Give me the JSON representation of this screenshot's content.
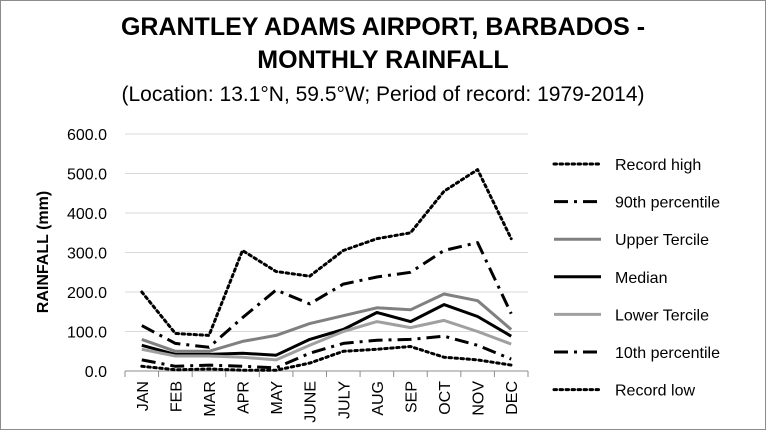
{
  "chart_data": {
    "type": "line",
    "title_line1": "GRANTLEY ADAMS AIRPORT, BARBADOS -",
    "title_line2": "MONTHLY RAINFALL",
    "subtitle": "(Location: 13.1°N, 59.5°W; Period of record: 1979-2014)",
    "ylabel": "RAINFALL (mm)",
    "xlabel": "",
    "ylim": [
      0,
      600
    ],
    "yticks": [
      "0.0",
      "100.0",
      "200.0",
      "300.0",
      "400.0",
      "500.0",
      "600.0"
    ],
    "grid": true,
    "legend_position": "right",
    "categories": [
      "JAN",
      "FEB",
      "MAR",
      "APR",
      "MAY",
      "JUNE",
      "JULY",
      "AUG",
      "SEP",
      "OCT",
      "NOV",
      "DEC"
    ],
    "series": [
      {
        "name": "Record high",
        "style": "dotted",
        "color": "#000000",
        "values": [
          200,
          95,
          90,
          305,
          252,
          240,
          305,
          335,
          350,
          455,
          510,
          335
        ]
      },
      {
        "name": "90th percentile",
        "style": "dashdot",
        "color": "#000000",
        "values": [
          115,
          70,
          60,
          135,
          205,
          170,
          220,
          238,
          250,
          305,
          325,
          145
        ]
      },
      {
        "name": "Upper Tercile",
        "style": "solid",
        "color": "#808080",
        "values": [
          80,
          50,
          50,
          75,
          90,
          120,
          140,
          160,
          155,
          195,
          178,
          105
        ]
      },
      {
        "name": "Median",
        "style": "solid",
        "color": "#000000",
        "values": [
          65,
          42,
          42,
          45,
          40,
          80,
          105,
          148,
          125,
          168,
          138,
          88
        ]
      },
      {
        "name": "Lower Tercile",
        "style": "solid",
        "color": "#a0a0a0",
        "values": [
          55,
          38,
          38,
          35,
          28,
          65,
          100,
          125,
          110,
          128,
          100,
          68
        ]
      },
      {
        "name": "10th percentile",
        "style": "dashdot",
        "color": "#000000",
        "values": [
          28,
          12,
          15,
          12,
          8,
          45,
          70,
          78,
          80,
          88,
          65,
          30
        ]
      },
      {
        "name": "Record low",
        "style": "dotted",
        "color": "#000000",
        "values": [
          12,
          3,
          5,
          2,
          2,
          20,
          50,
          55,
          62,
          35,
          28,
          15
        ]
      }
    ]
  }
}
